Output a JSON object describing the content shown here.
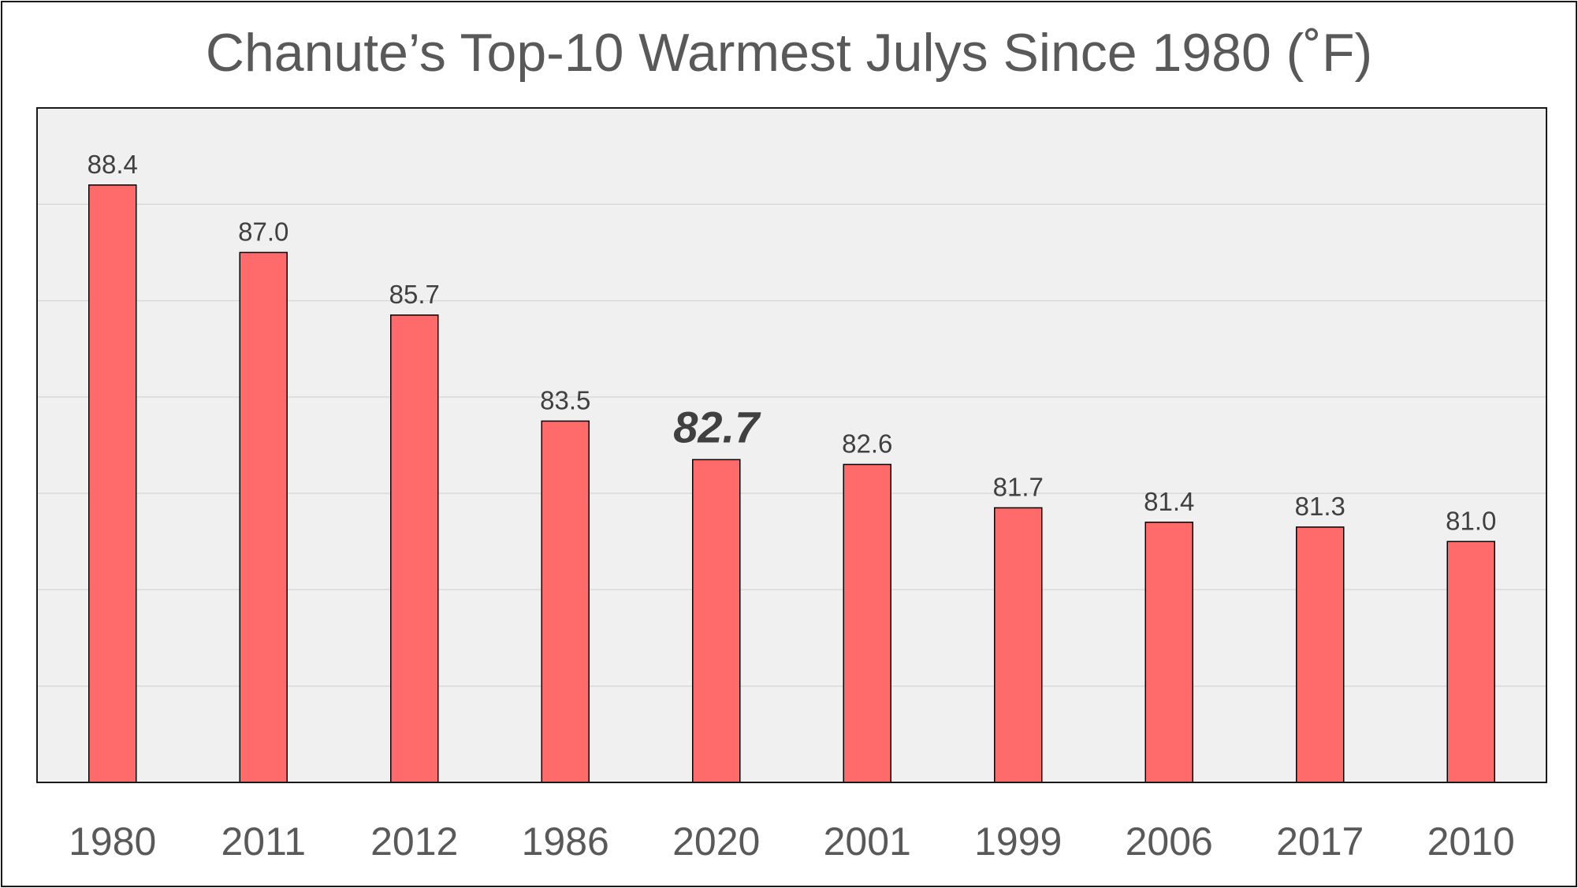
{
  "chart_data": {
    "type": "bar",
    "title": "Chanute’s Top-10 Warmest Julys Since 1980 (˚F)",
    "xlabel": "",
    "ylabel": "",
    "categories": [
      "1980",
      "2011",
      "2012",
      "1986",
      "2020",
      "2001",
      "1999",
      "2006",
      "2017",
      "2010"
    ],
    "values": [
      88.4,
      87.0,
      85.7,
      83.5,
      82.7,
      82.6,
      81.7,
      81.4,
      81.3,
      81.0
    ],
    "data_labels": [
      "88.4",
      "87.0",
      "85.7",
      "83.5",
      "82.7",
      "82.6",
      "81.7",
      "81.4",
      "81.3",
      "81.0"
    ],
    "highlighted_category": "2020",
    "ylim": [
      76,
      90
    ],
    "gridlines": [
      78,
      80,
      82,
      84,
      86,
      88
    ],
    "grid": true,
    "legend": "none",
    "colors": {
      "bar_fill": "#ff6b6b",
      "bar_stroke": "#000000",
      "plot_background": "#f0f0f0",
      "gridline": "#d9d9d9",
      "text": "#595959",
      "data_label": "#404040",
      "highlight_label": "#404040"
    }
  }
}
